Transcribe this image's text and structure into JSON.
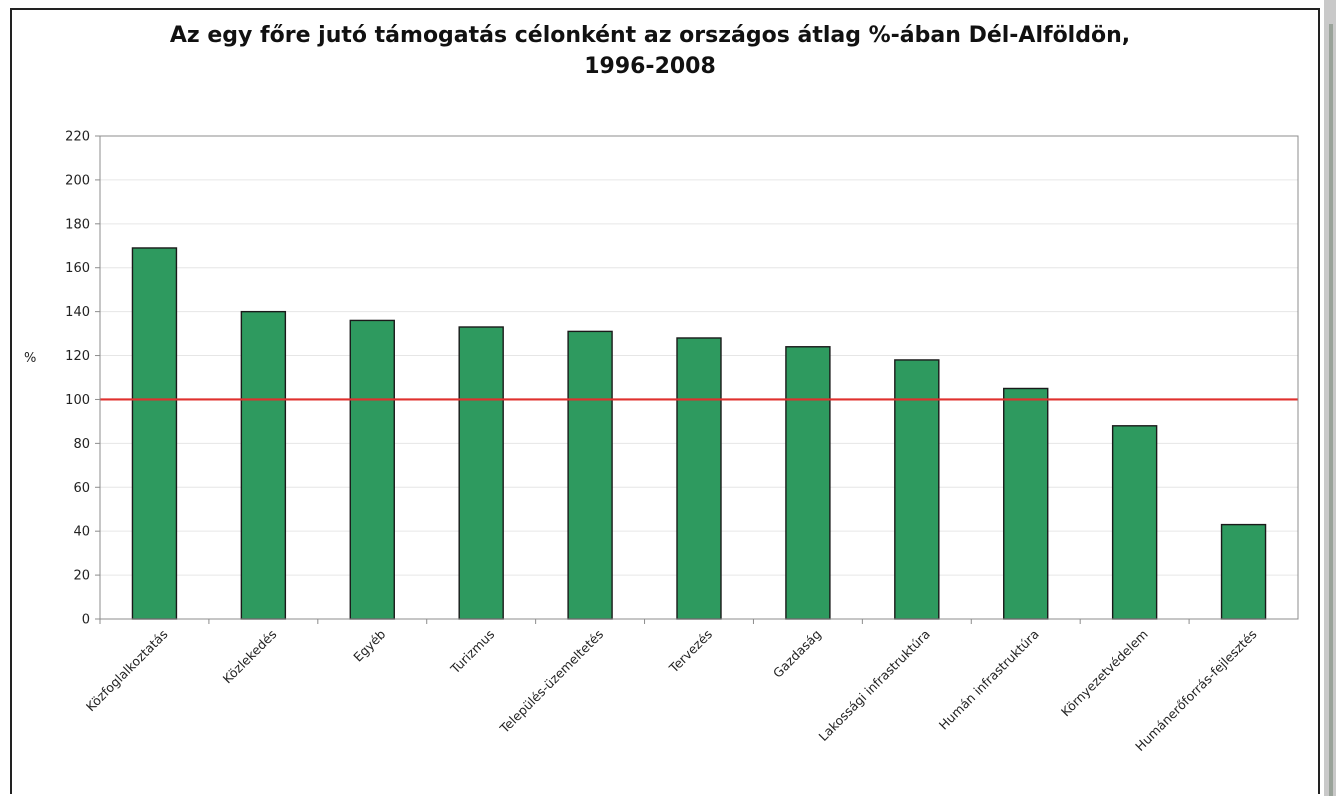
{
  "chart_data": {
    "type": "bar",
    "title": "Az egy főre jutó támogatás célonként az országos átlag %-ában Dél-Alföldön,\n1996-2008",
    "xlabel": "",
    "ylabel": "%",
    "ylim": [
      0,
      220
    ],
    "yticks": [
      0,
      20,
      40,
      60,
      80,
      100,
      120,
      140,
      160,
      180,
      200,
      220
    ],
    "grid": true,
    "legend": "none",
    "reference_line": 100,
    "categories": [
      "Közfoglalkoztatás",
      "Közlekedés",
      "Egyéb",
      "Turizmus",
      "Település-üzemeltetés",
      "Tervezés",
      "Gazdaság",
      "Lakossági infrastruktúra",
      "Humán infrastruktúra",
      "Környezetvédelem",
      "Humánerőforrás-fejlesztés"
    ],
    "values": [
      169,
      140,
      136,
      133,
      131,
      128,
      124,
      118,
      105,
      88,
      43
    ],
    "colors": {
      "bar": "#2e9a5f",
      "bar_border": "#1a1a1a",
      "reference_line": "#e0302e",
      "grid": "#e6e6e6",
      "axis": "#8c8c8c"
    }
  }
}
